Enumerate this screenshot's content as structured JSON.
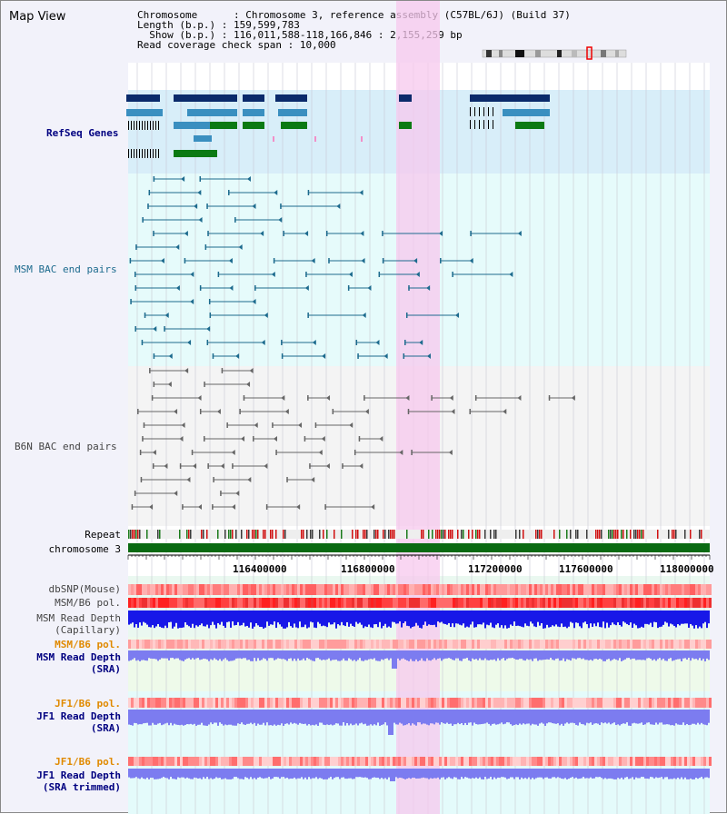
{
  "header": {
    "title": "Map View",
    "chromosome_label": "Chromosome",
    "chromosome_value": "Chromosome 3, reference assembly (C57BL/6J) (Build 37)",
    "length_label": "Length (b.p.)",
    "length_value": "159,599,783",
    "show_label": "Show (b.p.)",
    "show_value": "116,011,588-118,166,846 : 2,155,259 bp",
    "coverage_label": "Read coverage check span",
    "coverage_value": "10,000"
  },
  "tracks": {
    "refseq": "RefSeq Genes",
    "msm_bac": "MSM BAC end pairs",
    "b6n_bac": "B6N BAC end pairs",
    "repeat": "Repeat",
    "chromosome": "chromosome 3",
    "dbsnp": "dbSNP(Mouse)",
    "msm_b6_pol_1": "MSM/B6 pol.",
    "msm_depth_cap_1": "MSM Read Depth",
    "msm_depth_cap_2": "(Capillary)",
    "msm_b6_pol_2": "MSM/B6 pol.",
    "msm_depth_sra_1": "MSM Read Depth",
    "msm_depth_sra_2": "(SRA)",
    "jf1_b6_pol_1": "JF1/B6 pol.",
    "jf1_depth_sra_1": "JF1 Read Depth",
    "jf1_depth_sra_2": "(SRA)",
    "jf1_b6_pol_2": "JF1/B6 pol.",
    "jf1_depth_trim_1": "JF1 Read Depth",
    "jf1_depth_trim_2": "(SRA trimmed)"
  },
  "axis": {
    "ticks": [
      "116400000",
      "116800000",
      "117200000",
      "117600000",
      "118000000"
    ]
  },
  "colors": {
    "refseq_dark": "#0a2a6b",
    "refseq_mid": "#3a8fc0",
    "refseq_green": "#0b7a13",
    "msm_line": "#1d6b8e",
    "b6n_line": "#666666",
    "highlight": "#f7c8ee",
    "depth_dark": "#1818e8",
    "depth_light": "#7c7cf0",
    "chrom_green": "#0a6a12"
  }
}
